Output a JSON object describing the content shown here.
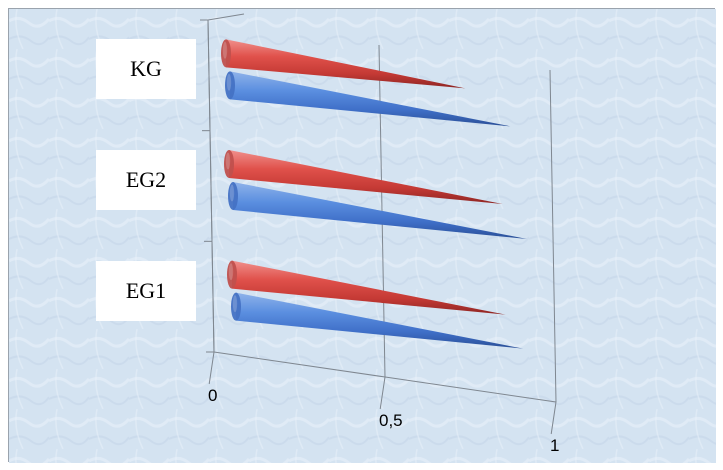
{
  "chart_data": {
    "type": "bar",
    "style": "3d-cone-horizontal",
    "categories": [
      "EG1",
      "EG2",
      "KG"
    ],
    "series": [
      {
        "values": [
          0.84,
          0.86,
          0.82
        ],
        "color": "#4472c4"
      },
      {
        "values": [
          0.8,
          0.8,
          0.7
        ],
        "color": "#c0504d"
      }
    ],
    "xticks": [
      "0",
      "0,5",
      "1"
    ],
    "xlim": [
      0,
      1
    ],
    "grid": true,
    "legend": "none",
    "title": "",
    "xlabel": "",
    "ylabel": ""
  }
}
